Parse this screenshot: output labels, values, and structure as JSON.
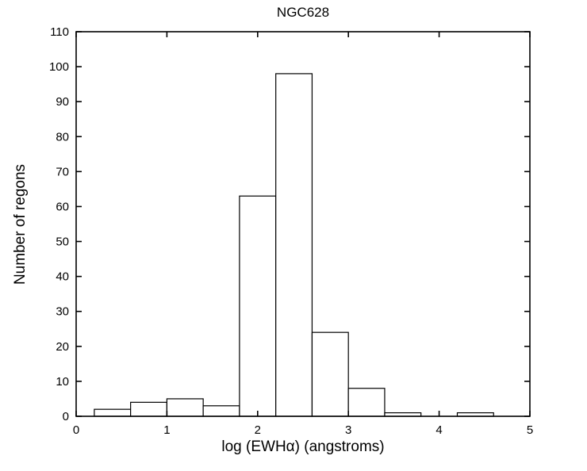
{
  "chart_data": {
    "type": "bar",
    "title": "NGC628",
    "xlabel": "log (EWHα) (angstroms)",
    "ylabel": "Number of regons",
    "xlim": [
      0,
      5
    ],
    "ylim": [
      0,
      110
    ],
    "xticks": [
      0,
      1,
      2,
      3,
      4,
      5
    ],
    "yticks": [
      0,
      10,
      20,
      30,
      40,
      50,
      60,
      70,
      80,
      90,
      100,
      110
    ],
    "bin_width": 0.4,
    "bars": [
      {
        "center": 0.4,
        "count": 2
      },
      {
        "center": 0.8,
        "count": 4
      },
      {
        "center": 1.2,
        "count": 5
      },
      {
        "center": 1.6,
        "count": 3
      },
      {
        "center": 2.0,
        "count": 63
      },
      {
        "center": 2.4,
        "count": 98
      },
      {
        "center": 2.8,
        "count": 24
      },
      {
        "center": 3.2,
        "count": 8
      },
      {
        "center": 3.6,
        "count": 1
      },
      {
        "center": 4.0,
        "count": 0
      },
      {
        "center": 4.4,
        "count": 1
      }
    ],
    "grid": false,
    "legend_position": "none",
    "background": "#ffffff",
    "axis_color": "#000000",
    "bar_fill": "#ffffff",
    "bar_stroke": "#000000"
  }
}
